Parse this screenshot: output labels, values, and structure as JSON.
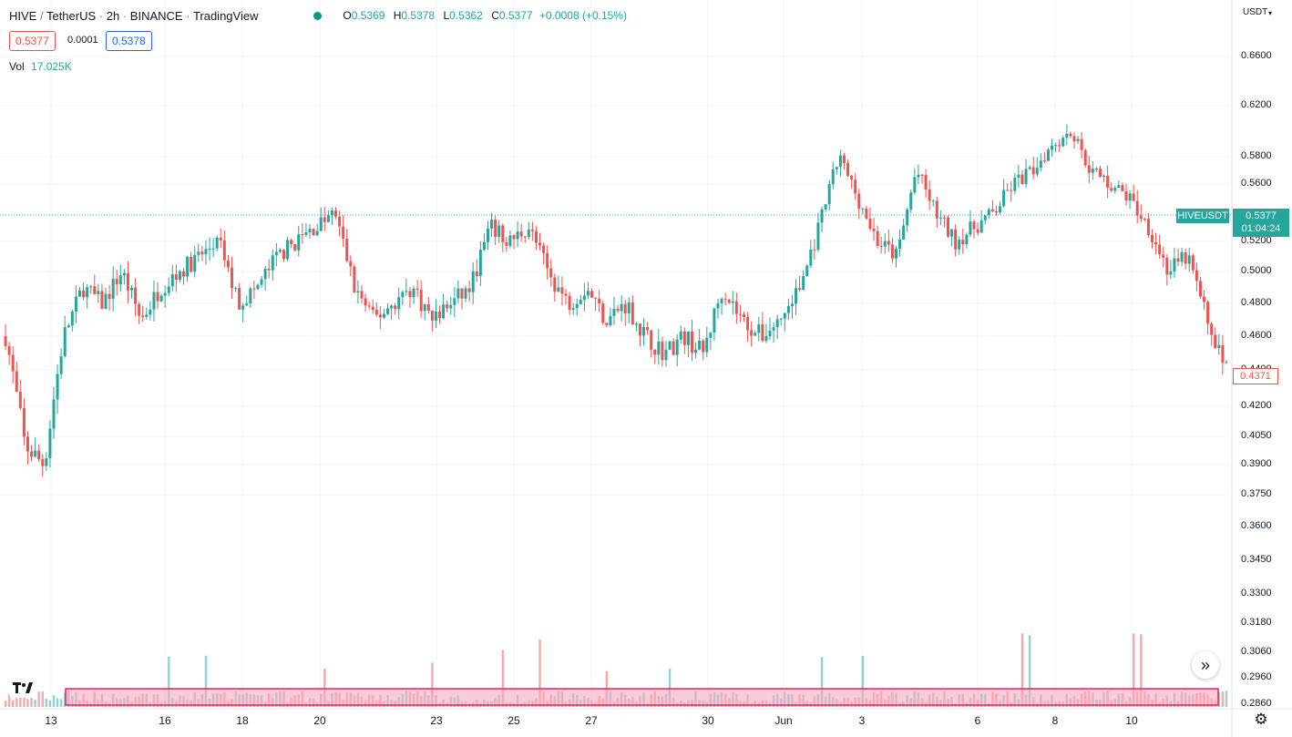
{
  "header": {
    "symbol": "HIVE",
    "quote": "TetherUS",
    "interval": "2h",
    "exchange": "BINANCE",
    "platform": "TradingView",
    "ohlc": {
      "o": "0.5369",
      "h": "0.5378",
      "l": "0.5362",
      "c": "0.5377",
      "change": "+0.0008 (+0.15%)"
    },
    "sell_price": "0.5377",
    "spread": "0.0001",
    "buy_price": "0.5378",
    "volume_label": "Vol",
    "volume_value": "17.025K",
    "currency": "USDT"
  },
  "price_tag": {
    "symbol": "HIVEUSDT",
    "price": "0.5377",
    "countdown": "01:04:24"
  },
  "low_tag": "0.4371",
  "y_axis": {
    "ticks": [
      "0.6600",
      "0.6200",
      "0.5800",
      "0.5600",
      "0.5200",
      "0.5000",
      "0.4800",
      "0.4600",
      "0.4400",
      "0.4200",
      "0.4050",
      "0.3900",
      "0.3750",
      "0.3600",
      "0.3450",
      "0.3300",
      "0.3180",
      "0.3060",
      "0.2960",
      "0.2860"
    ]
  },
  "x_axis": {
    "labels": [
      {
        "t": "13",
        "x": 56
      },
      {
        "t": "16",
        "x": 181
      },
      {
        "t": "18",
        "x": 266
      },
      {
        "t": "20",
        "x": 351
      },
      {
        "t": "23",
        "x": 479
      },
      {
        "t": "25",
        "x": 564
      },
      {
        "t": "27",
        "x": 649
      },
      {
        "t": "30",
        "x": 777
      },
      {
        "t": "Jun",
        "x": 860
      },
      {
        "t": "3",
        "x": 946
      },
      {
        "t": "6",
        "x": 1073
      },
      {
        "t": "8",
        "x": 1158
      },
      {
        "t": "10",
        "x": 1242
      }
    ]
  },
  "colors": {
    "up": "#26a69a",
    "down": "#ef5350",
    "grid": "#f0f3fa",
    "tag_green": "#26a69a",
    "highlight": "#f7a9c0",
    "highlight_border": "#e91e63"
  },
  "icons": {
    "logo": "tradingview-logo-icon",
    "scroll": "double-chevron-right-icon",
    "settings": "gear-icon"
  },
  "chart_data": {
    "type": "candlestick",
    "ylim": [
      0.286,
      0.68
    ],
    "x_start": "May 12",
    "x_end": "Jun 12",
    "approx_close_path": [
      0.46,
      0.4,
      0.39,
      0.46,
      0.49,
      0.48,
      0.5,
      0.47,
      0.49,
      0.5,
      0.51,
      0.52,
      0.48,
      0.49,
      0.51,
      0.52,
      0.53,
      0.54,
      0.49,
      0.47,
      0.48,
      0.49,
      0.47,
      0.48,
      0.49,
      0.53,
      0.52,
      0.53,
      0.5,
      0.48,
      0.49,
      0.47,
      0.48,
      0.46,
      0.45,
      0.46,
      0.45,
      0.49,
      0.47,
      0.46,
      0.47,
      0.49,
      0.53,
      0.58,
      0.55,
      0.52,
      0.51,
      0.57,
      0.54,
      0.52,
      0.53,
      0.54,
      0.56,
      0.57,
      0.59,
      0.6,
      0.57,
      0.56,
      0.55,
      0.53,
      0.5,
      0.51,
      0.47,
      0.44
    ]
  }
}
